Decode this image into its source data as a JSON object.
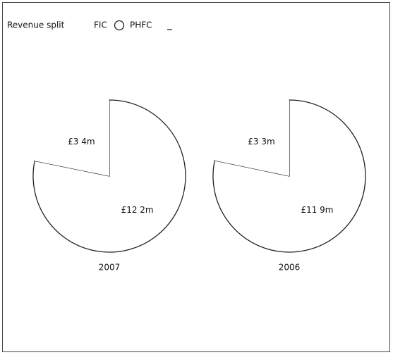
{
  "title": "Revenue split",
  "chart_data": [
    {
      "type": "pie",
      "title": "2007",
      "categories": [
        "FIC",
        "PHFC"
      ],
      "values": [
        12.2,
        3.4
      ],
      "value_labels": [
        "£12 2m",
        "£3 4m"
      ],
      "colors": [
        "#ffffff",
        "#ffffff"
      ],
      "outlined": [
        true,
        false
      ]
    },
    {
      "type": "pie",
      "title": "2006",
      "categories": [
        "FIC",
        "PHFC"
      ],
      "values": [
        11.9,
        3.3
      ],
      "value_labels": [
        "£11 9m",
        "£3 3m"
      ],
      "colors": [
        "#ffffff",
        "#ffffff"
      ],
      "outlined": [
        true,
        false
      ]
    }
  ]
}
